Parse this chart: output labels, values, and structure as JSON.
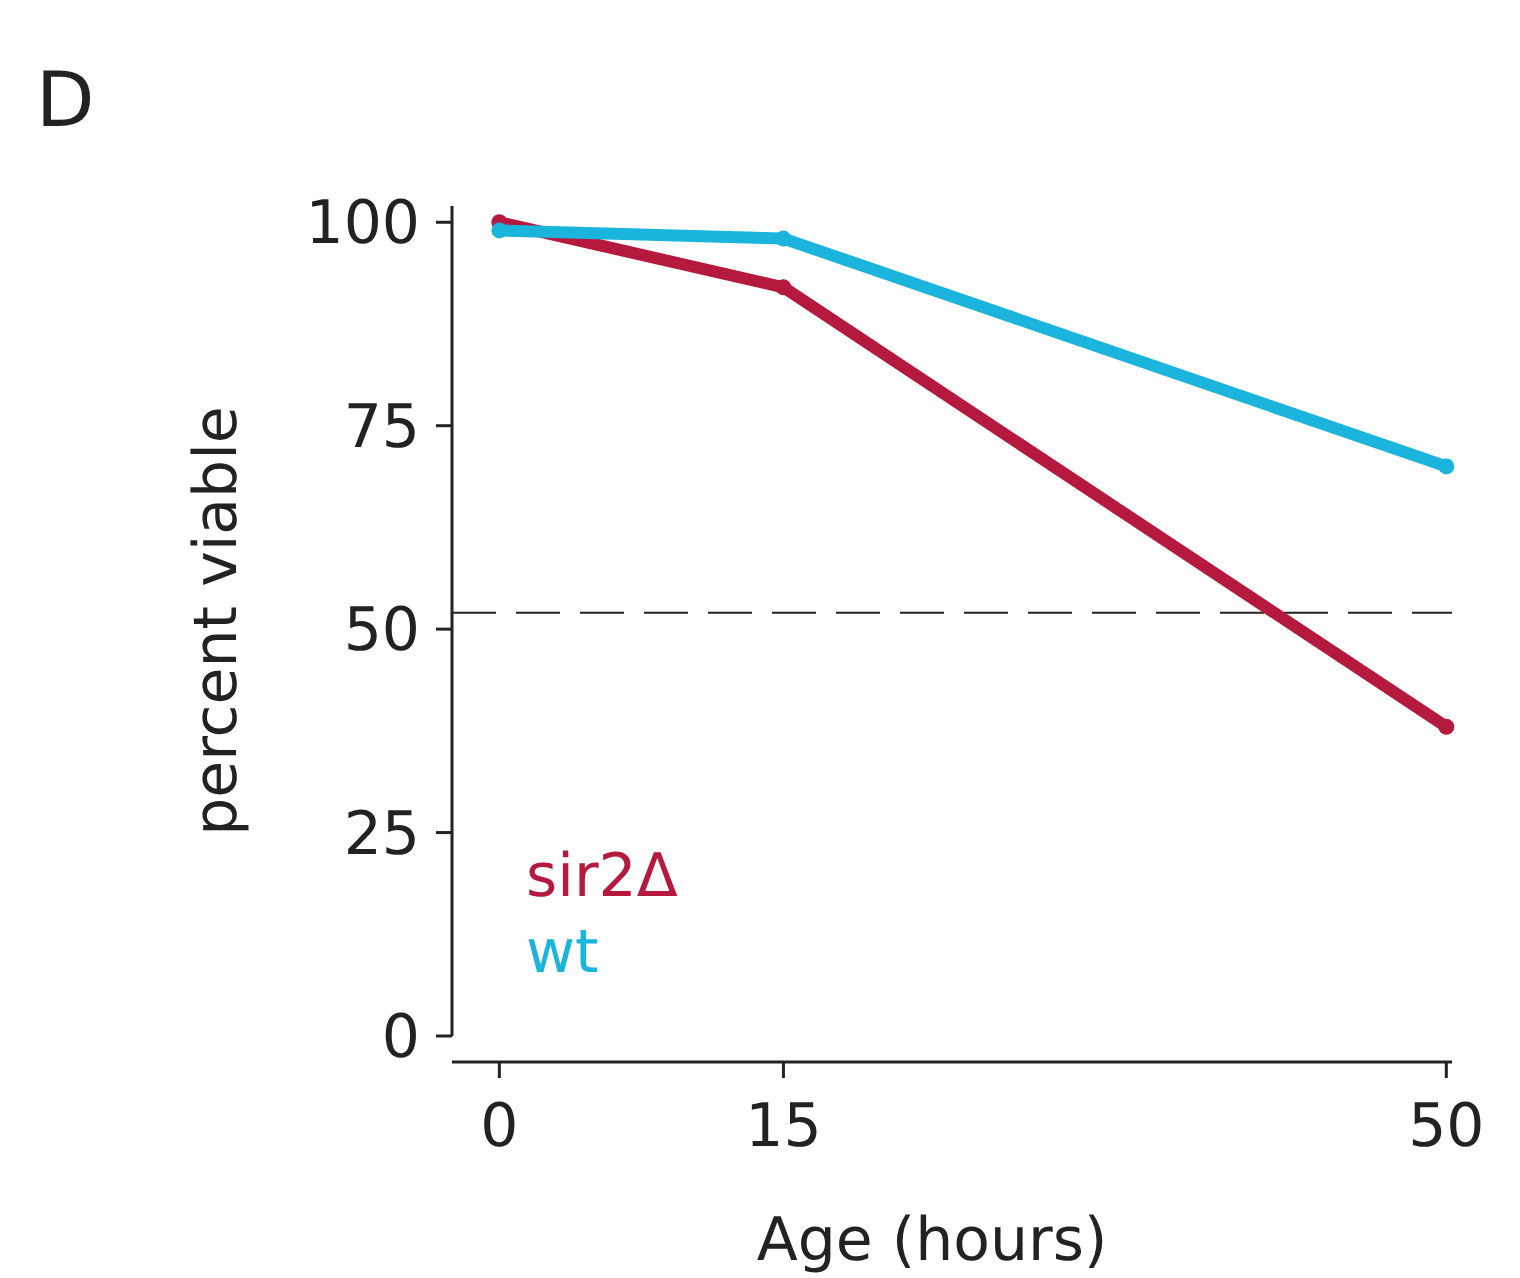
{
  "chart_data": {
    "type": "line",
    "annotations": [
      "D"
    ],
    "xlabel": "Age (hours)",
    "ylabel": "percent viable",
    "x": [
      0,
      15,
      50
    ],
    "xlim": [
      -2.5,
      50.3
    ],
    "xticks": [
      0,
      15,
      50
    ],
    "ylim": [
      0,
      102
    ],
    "yticks": [
      0,
      25,
      50,
      75,
      100
    ],
    "legend": "bottom left",
    "marker": "circle",
    "grid": false,
    "series": [
      {
        "name": "sir2Δ",
        "color": "#b5193e",
        "values": [
          100,
          92,
          38
        ]
      },
      {
        "name": "wt",
        "color": "#1ab4dc",
        "values": [
          99,
          98,
          70
        ]
      }
    ],
    "ref_lines": [
      {
        "axis": "y",
        "value": 52,
        "color": "#222222",
        "line_style": "dashed"
      }
    ]
  }
}
